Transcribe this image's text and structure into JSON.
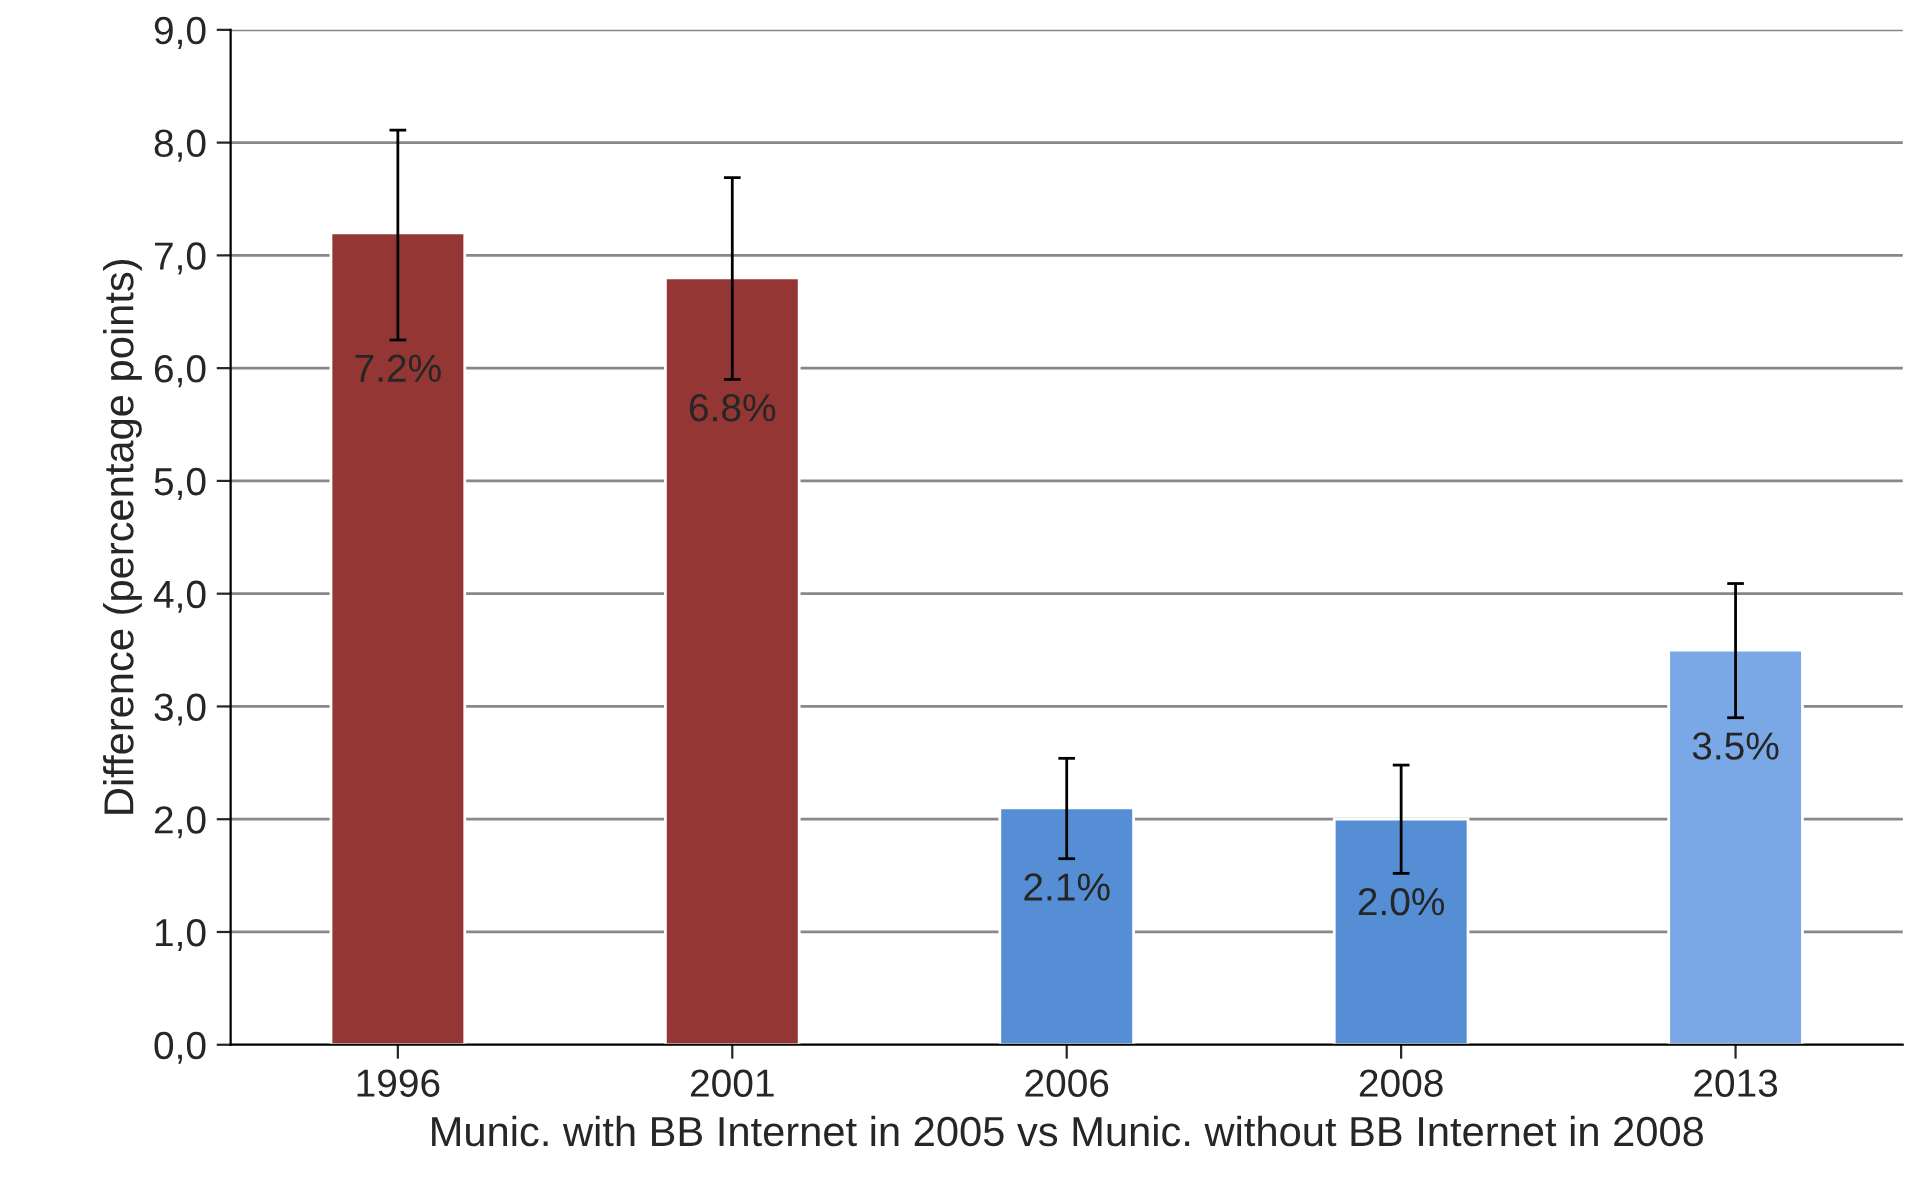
{
  "chart_data": {
    "type": "bar",
    "xlabel": "Munic. with BB Internet in 2005 vs Munic. without BB Internet in 2008",
    "ylabel": "Difference (percentage points)",
    "categories": [
      "1996",
      "2001",
      "2006",
      "2008",
      "2013"
    ],
    "values": [
      7.2,
      6.8,
      2.1,
      2.0,
      3.5
    ],
    "colors": [
      "#943634",
      "#943634",
      "#558ed5",
      "#558ed5",
      "#7aa8e6"
    ],
    "errors": [
      [
        6.25,
        8.11
      ],
      [
        5.9,
        7.69
      ],
      [
        1.65,
        2.54
      ],
      [
        1.52,
        2.48
      ],
      [
        2.9,
        4.09
      ]
    ],
    "value_labels": [
      "7.2%",
      "6.8%",
      "2.1%",
      "2.0%",
      "3.5%"
    ],
    "ylim": [
      0,
      9
    ],
    "yticks": [
      {
        "value": 0,
        "label": "0,0"
      },
      {
        "value": 1,
        "label": "1,0"
      },
      {
        "value": 2,
        "label": "2,0"
      },
      {
        "value": 3,
        "label": "3,0"
      },
      {
        "value": 4,
        "label": "4,0"
      },
      {
        "value": 5,
        "label": "5,0"
      },
      {
        "value": 6,
        "label": "6,0"
      },
      {
        "value": 7,
        "label": "7,0"
      },
      {
        "value": 8,
        "label": "8,0"
      },
      {
        "value": 9,
        "label": "9,0"
      }
    ],
    "grid": "y"
  }
}
